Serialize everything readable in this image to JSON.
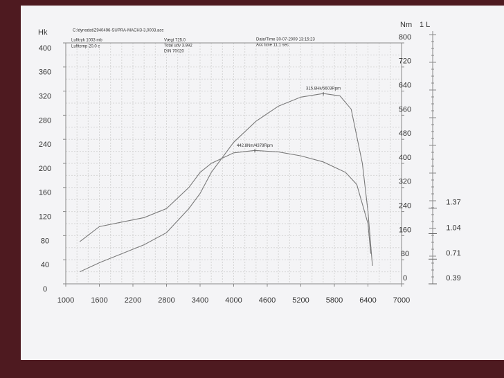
{
  "chart_data": {
    "type": "line",
    "file": "C:\\dynodat\\Z940496-SUPRA-MACH3-3,0003.acc",
    "info": [
      "Lufttryk  1003 mb",
      "Lufttemp  20.0 c",
      "Vægt  725.0",
      "Total udv 3.992",
      "DIN 70020",
      "Date/Time  30-07-2009 13:15:23",
      "Acc time  11.1 sec"
    ],
    "y_label": "Hk",
    "y2_label": "Nm",
    "y3_label": "1 L",
    "xlim": [
      1000,
      7000
    ],
    "xticks": [
      1000,
      1600,
      2200,
      2800,
      3400,
      4000,
      4600,
      5200,
      5800,
      6400,
      7000
    ],
    "ylim": [
      0,
      400
    ],
    "yticks": [
      0,
      40,
      80,
      120,
      160,
      200,
      240,
      280,
      320,
      360,
      400
    ],
    "y2lim": [
      0,
      800
    ],
    "y2ticks": [
      0,
      80,
      160,
      240,
      320,
      400,
      480,
      560,
      640,
      720,
      800
    ],
    "y3lim": [
      0.39,
      3.51
    ],
    "y3ticks": [
      0.39,
      0.71,
      1.04,
      1.37
    ],
    "grid": true,
    "series": [
      {
        "name": "Hk",
        "color": "#7a7a7a",
        "x": [
          1250,
          1600,
          2000,
          2400,
          2800,
          3200,
          3400,
          3600,
          4000,
          4400,
          4800,
          5200,
          5603,
          5900,
          6100,
          6300,
          6400,
          6480
        ],
        "values": [
          20,
          35,
          50,
          65,
          85,
          125,
          150,
          185,
          235,
          270,
          295,
          310,
          316,
          312,
          290,
          200,
          120,
          30
        ]
      },
      {
        "name": "Nm",
        "color": "#7a7a7a",
        "axis": "y2",
        "x": [
          1250,
          1600,
          2000,
          2400,
          2800,
          3200,
          3400,
          3600,
          4000,
          4378,
          4800,
          5200,
          5600,
          6000,
          6200,
          6400,
          6450
        ],
        "values": [
          140,
          190,
          205,
          220,
          250,
          320,
          370,
          400,
          435,
          443,
          438,
          425,
          405,
          370,
          330,
          200,
          100
        ]
      }
    ],
    "annotations": [
      {
        "text": "315.8Hk/5603Rpm",
        "x": 5603,
        "y": 316
      },
      {
        "text": "442.8Nm/4378Rpm",
        "x": 4378,
        "y": 443,
        "axis": "y2"
      }
    ]
  }
}
